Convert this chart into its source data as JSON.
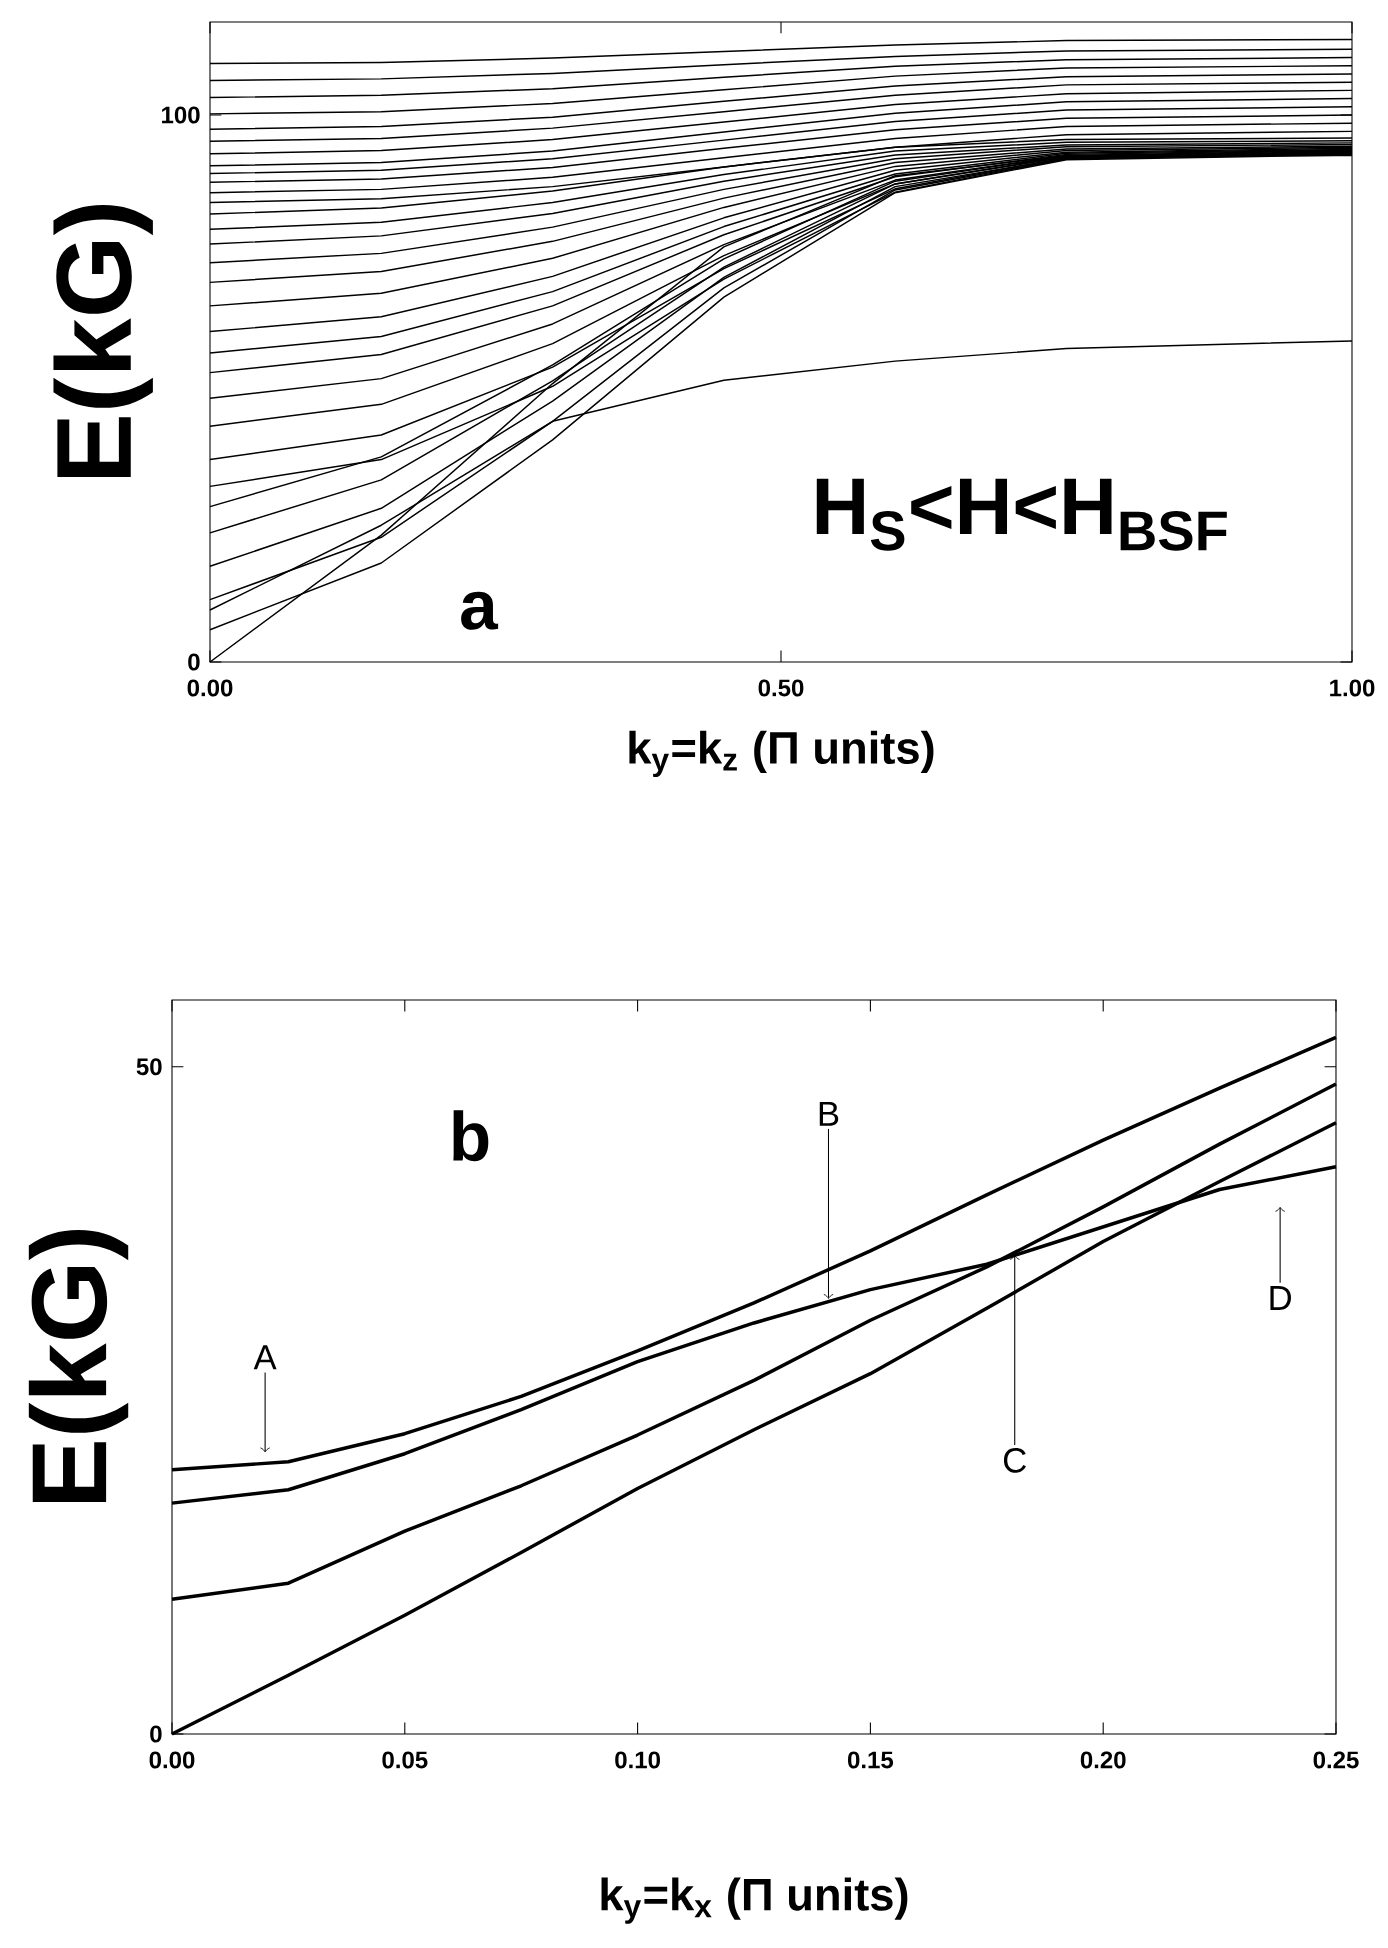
{
  "chart_data": [
    {
      "type": "line",
      "xlabel": "k$_{y}$=k$_{z}$ (Π units)",
      "ylabel": "E(kG)",
      "x": [
        0,
        0.15,
        0.3,
        0.45,
        0.6,
        0.75,
        1.0
      ],
      "xlim": [
        0,
        1
      ],
      "ylim": [
        0,
        117
      ],
      "xticks": [
        {
          "value": 0,
          "label": "0.00"
        },
        {
          "value": 0.5,
          "label": "0.50"
        },
        {
          "value": 1,
          "label": "1.00"
        }
      ],
      "yticks": [
        0,
        100
      ],
      "annotations": [
        "H$_{S}$<H<H$_{BSF}$",
        "a"
      ],
      "series": [
        {
          "color": "#000000",
          "values": [
            109.4,
            109.6,
            110.4,
            111.6,
            112.8,
            113.6,
            113.8
          ]
        },
        {
          "color": "#000000",
          "values": [
            106.3,
            106.6,
            107.6,
            109.2,
            110.7,
            111.7,
            112
          ]
        },
        {
          "color": "#000000",
          "values": [
            103.2,
            103.6,
            104.8,
            106.9,
            108.9,
            110.1,
            110.5
          ]
        },
        {
          "color": "#000000",
          "values": [
            100.2,
            100.6,
            102.1,
            104.6,
            107.1,
            108.6,
            109
          ]
        },
        {
          "color": "#000000",
          "values": [
            97.4,
            97.9,
            99.6,
            102.5,
            105.3,
            107,
            107.5
          ]
        },
        {
          "color": "#000000",
          "values": [
            95.2,
            95.7,
            97.6,
            100.6,
            103.6,
            105.5,
            106
          ]
        },
        {
          "color": "#000000",
          "values": [
            92.9,
            93.5,
            95.5,
            98.7,
            101.9,
            103.9,
            104.5
          ]
        },
        {
          "color": "#000000",
          "values": [
            90.7,
            91.3,
            93.4,
            96.9,
            100.3,
            102.4,
            103
          ]
        },
        {
          "color": "#000000",
          "values": [
            89.3,
            89.9,
            92,
            95.4,
            98.8,
            100.9,
            101.5
          ]
        },
        {
          "color": "#000000",
          "values": [
            87.7,
            88.3,
            90.4,
            93.9,
            97.3,
            99.4,
            100
          ]
        },
        {
          "color": "#000000",
          "values": [
            85.8,
            86.4,
            88.6,
            92.2,
            95.7,
            97.9,
            98.5
          ]
        },
        {
          "color": "#000000",
          "values": [
            84,
            84.7,
            86.9,
            90.5,
            94.1,
            96.4,
            97
          ]
        },
        {
          "color": "#000000",
          "values": [
            81.9,
            83,
            86.1,
            90.5,
            94.1,
            95.5,
            95.8
          ]
        },
        {
          "color": "#000000",
          "values": [
            79.1,
            80.4,
            84,
            89.1,
            93.4,
            95,
            95.3
          ]
        },
        {
          "color": "#000000",
          "values": [
            76.4,
            77.9,
            82,
            87.9,
            92.7,
            94.5,
            94.9
          ]
        },
        {
          "color": "#000000",
          "values": [
            73,
            74.7,
            79.5,
            86.4,
            92,
            94.2,
            94.6
          ]
        },
        {
          "color": "#000000",
          "values": [
            69.4,
            71.4,
            76.9,
            84.8,
            91.3,
            93.8,
            94.3
          ]
        },
        {
          "color": "#000000",
          "values": [
            65.1,
            67.4,
            73.8,
            83.1,
            90.6,
            93.5,
            94.1
          ]
        },
        {
          "color": "#000000",
          "values": [
            60.4,
            63.1,
            70.5,
            81.2,
            89.9,
            93.2,
            93.9
          ]
        },
        {
          "color": "#000000",
          "values": [
            56.5,
            59.5,
            67.7,
            79.6,
            89.2,
            93,
            93.7
          ]
        },
        {
          "color": "#000000",
          "values": [
            52.9,
            56.2,
            65.1,
            78.1,
            88.7,
            92.8,
            93.6
          ]
        },
        {
          "color": "#000000",
          "values": [
            48.2,
            51.8,
            61.8,
            76.3,
            88.1,
            92.6,
            93.5
          ]
        },
        {
          "color": "#000000",
          "values": [
            43.1,
            47.1,
            58.2,
            74.3,
            87.4,
            92.4,
            93.4
          ]
        },
        {
          "color": "#000000",
          "values": [
            37,
            41.5,
            53.9,
            71.9,
            86.5,
            92.2,
            93.3
          ]
        },
        {
          "color": "#000000",
          "values": [
            32.1,
            37,
            50.4,
            70,
            85.9,
            92,
            93.2
          ]
        },
        {
          "color": "#000000",
          "values": [
            28.4,
            37.5,
            54.3,
            73.7,
            87.9,
            92.5,
            93.1
          ]
        },
        {
          "color": "#000000",
          "values": [
            23.6,
            33.3,
            51.4,
            72.2,
            87.4,
            92.3,
            93
          ]
        },
        {
          "color": "#000000",
          "values": [
            17.5,
            28.1,
            47.7,
            70.3,
            86.9,
            92.1,
            92.9
          ]
        },
        {
          "color": "#000000",
          "values": [
            11.4,
            22.8,
            44,
            68.4,
            86.3,
            92,
            92.8
          ]
        },
        {
          "color": "#000000",
          "values": [
            5.9,
            18.1,
            40.6,
            66.7,
            85.8,
            91.8,
            92.7
          ]
        },
        {
          "color": "#000000",
          "values": [
            0,
            23.2,
            50.9,
            75.9,
            88.9,
            92.6,
            92.6
          ]
        },
        {
          "color": "#000000",
          "values": [
            9.5,
            25,
            44,
            51.5,
            55,
            57.3,
            58.7
          ]
        }
      ]
    },
    {
      "type": "line",
      "xlabel": "k$_{y}$=k$_{x}$ (Π units)",
      "ylabel": "E(kG)",
      "x": [
        0,
        0.025,
        0.05,
        0.075,
        0.1,
        0.125,
        0.15,
        0.175,
        0.2,
        0.225,
        0.25
      ],
      "xlim": [
        0,
        0.25
      ],
      "ylim": [
        0,
        55
      ],
      "xticks": [
        {
          "value": 0,
          "label": "0.00"
        },
        {
          "value": 0.05,
          "label": "0.05"
        },
        {
          "value": 0.1,
          "label": "0.10"
        },
        {
          "value": 0.15,
          "label": "0.15"
        },
        {
          "value": 0.2,
          "label": "0.20"
        },
        {
          "value": 0.25,
          "label": "0.25"
        }
      ],
      "yticks": [
        0,
        50
      ],
      "annotations": [
        "b",
        {
          "text": "A",
          "x": 0.02,
          "y": 21.1
        },
        {
          "text": "B",
          "x": 0.141,
          "y": 32.6
        },
        {
          "text": "C",
          "x": 0.181,
          "y": 35.9
        },
        {
          "text": "D",
          "x": 0.238,
          "y": 39.5
        }
      ],
      "series": [
        {
          "color": "#000000",
          "values": [
            19.8,
            20.4,
            22.5,
            25.3,
            28.7,
            32.3,
            36.2,
            40.4,
            44.5,
            48.4,
            52.2
          ]
        },
        {
          "color": "#000000",
          "values": [
            17.3,
            18.3,
            21,
            24.3,
            27.9,
            30.8,
            33.3,
            35.2,
            38,
            40.8,
            42.5
          ]
        },
        {
          "color": "#000000",
          "values": [
            10.1,
            11.3,
            15.2,
            18.6,
            22.4,
            26.5,
            31,
            35,
            39.5,
            44.2,
            48.7
          ]
        },
        {
          "color": "#000000",
          "values": [
            0,
            4.4,
            8.9,
            13.6,
            18.4,
            22.8,
            27,
            31.9,
            36.9,
            41.4,
            45.8
          ]
        }
      ]
    }
  ]
}
